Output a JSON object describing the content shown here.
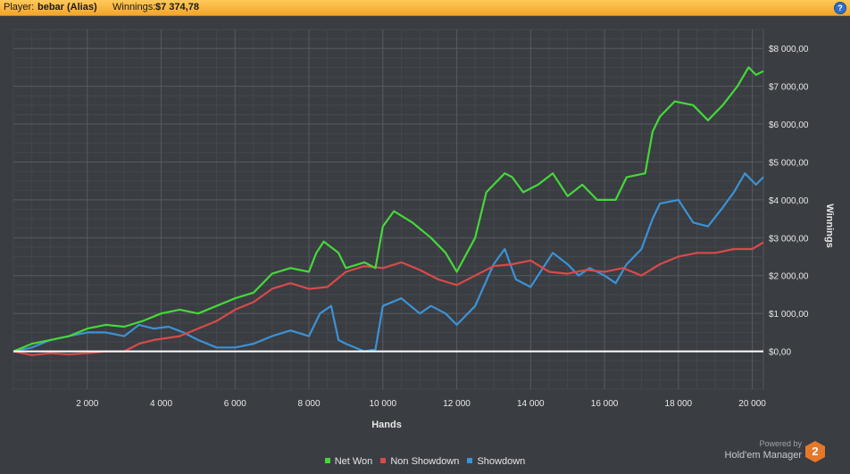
{
  "header": {
    "player_label": "Player:",
    "player_name": "bebar (Alias)",
    "winnings_label": "Winnings:",
    "winnings_value": "$7 374,78",
    "help_glyph": "?"
  },
  "branding": {
    "powered_by": "Powered by",
    "name": "Hold'em Manager",
    "logo_text": "2"
  },
  "chart_data": {
    "type": "line",
    "title": "",
    "xlabel": "Hands",
    "ylabel": "Winnings",
    "xlim": [
      0,
      20300
    ],
    "ylim": [
      -1000,
      8500
    ],
    "x_ticks": [
      2000,
      4000,
      6000,
      8000,
      10000,
      12000,
      14000,
      16000,
      18000,
      20000
    ],
    "x_tick_labels": [
      "2 000",
      "4 000",
      "6 000",
      "8 000",
      "10 000",
      "12 000",
      "14 000",
      "16 000",
      "18 000",
      "20 000"
    ],
    "y_ticks": [
      0,
      1000,
      2000,
      3000,
      4000,
      5000,
      6000,
      7000,
      8000
    ],
    "y_tick_labels": [
      "$0,00",
      "$1 000,00",
      "$2 000,00",
      "$3 000,00",
      "$4 000,00",
      "$5 000,00",
      "$6 000,00",
      "$7 000,00",
      "$8 000,00"
    ],
    "grid": true,
    "legend_position": "bottom",
    "zero_line_color": "#ffffff",
    "series": [
      {
        "name": "Net Won",
        "color": "#45d83a",
        "points": [
          [
            0,
            0
          ],
          [
            500,
            200
          ],
          [
            1000,
            300
          ],
          [
            1500,
            400
          ],
          [
            2000,
            600
          ],
          [
            2500,
            700
          ],
          [
            3000,
            650
          ],
          [
            3500,
            800
          ],
          [
            4000,
            1000
          ],
          [
            4500,
            1100
          ],
          [
            5000,
            1000
          ],
          [
            5500,
            1200
          ],
          [
            6000,
            1400
          ],
          [
            6500,
            1550
          ],
          [
            7000,
            2050
          ],
          [
            7500,
            2200
          ],
          [
            8000,
            2100
          ],
          [
            8200,
            2600
          ],
          [
            8400,
            2900
          ],
          [
            8800,
            2600
          ],
          [
            9000,
            2200
          ],
          [
            9500,
            2350
          ],
          [
            9800,
            2200
          ],
          [
            10000,
            3300
          ],
          [
            10300,
            3700
          ],
          [
            10800,
            3400
          ],
          [
            11300,
            3000
          ],
          [
            11700,
            2600
          ],
          [
            12000,
            2100
          ],
          [
            12500,
            3000
          ],
          [
            12800,
            4200
          ],
          [
            13000,
            4400
          ],
          [
            13300,
            4700
          ],
          [
            13500,
            4600
          ],
          [
            13800,
            4200
          ],
          [
            14200,
            4400
          ],
          [
            14600,
            4700
          ],
          [
            15000,
            4100
          ],
          [
            15400,
            4400
          ],
          [
            15800,
            4000
          ],
          [
            16300,
            4000
          ],
          [
            16600,
            4600
          ],
          [
            17100,
            4700
          ],
          [
            17300,
            5800
          ],
          [
            17500,
            6200
          ],
          [
            17900,
            6600
          ],
          [
            18400,
            6500
          ],
          [
            18800,
            6100
          ],
          [
            19200,
            6500
          ],
          [
            19600,
            7000
          ],
          [
            19900,
            7500
          ],
          [
            20100,
            7300
          ],
          [
            20300,
            7400
          ]
        ]
      },
      {
        "name": "Non Showdown",
        "color": "#d84a4a",
        "points": [
          [
            0,
            0
          ],
          [
            500,
            -100
          ],
          [
            1000,
            -50
          ],
          [
            1500,
            -80
          ],
          [
            2000,
            -50
          ],
          [
            2500,
            0
          ],
          [
            3000,
            0
          ],
          [
            3400,
            200
          ],
          [
            3800,
            300
          ],
          [
            4500,
            400
          ],
          [
            5000,
            600
          ],
          [
            5500,
            800
          ],
          [
            6000,
            1100
          ],
          [
            6500,
            1300
          ],
          [
            7000,
            1650
          ],
          [
            7500,
            1800
          ],
          [
            8000,
            1650
          ],
          [
            8500,
            1700
          ],
          [
            9000,
            2100
          ],
          [
            9500,
            2250
          ],
          [
            10000,
            2200
          ],
          [
            10500,
            2350
          ],
          [
            11000,
            2150
          ],
          [
            11500,
            1900
          ],
          [
            12000,
            1750
          ],
          [
            12500,
            2000
          ],
          [
            13000,
            2250
          ],
          [
            13500,
            2300
          ],
          [
            14000,
            2400
          ],
          [
            14500,
            2100
          ],
          [
            15000,
            2050
          ],
          [
            15500,
            2150
          ],
          [
            16000,
            2100
          ],
          [
            16500,
            2200
          ],
          [
            17000,
            2000
          ],
          [
            17500,
            2300
          ],
          [
            18000,
            2500
          ],
          [
            18500,
            2600
          ],
          [
            19000,
            2600
          ],
          [
            19500,
            2700
          ],
          [
            20000,
            2700
          ],
          [
            20300,
            2880
          ]
        ]
      },
      {
        "name": "Showdown",
        "color": "#3c92d6",
        "points": [
          [
            0,
            0
          ],
          [
            500,
            100
          ],
          [
            1000,
            300
          ],
          [
            1500,
            400
          ],
          [
            2000,
            500
          ],
          [
            2500,
            500
          ],
          [
            3000,
            400
          ],
          [
            3400,
            700
          ],
          [
            3800,
            600
          ],
          [
            4200,
            650
          ],
          [
            4600,
            500
          ],
          [
            5000,
            300
          ],
          [
            5500,
            100
          ],
          [
            6000,
            100
          ],
          [
            6500,
            200
          ],
          [
            7000,
            400
          ],
          [
            7500,
            550
          ],
          [
            8000,
            400
          ],
          [
            8300,
            1000
          ],
          [
            8600,
            1200
          ],
          [
            8800,
            300
          ],
          [
            9000,
            200
          ],
          [
            9500,
            0
          ],
          [
            9800,
            50
          ],
          [
            10000,
            1200
          ],
          [
            10500,
            1400
          ],
          [
            11000,
            1000
          ],
          [
            11300,
            1200
          ],
          [
            11700,
            1000
          ],
          [
            12000,
            700
          ],
          [
            12500,
            1200
          ],
          [
            13000,
            2300
          ],
          [
            13300,
            2700
          ],
          [
            13600,
            1900
          ],
          [
            14000,
            1700
          ],
          [
            14200,
            2000
          ],
          [
            14600,
            2600
          ],
          [
            15000,
            2300
          ],
          [
            15300,
            2000
          ],
          [
            15600,
            2200
          ],
          [
            16000,
            2000
          ],
          [
            16300,
            1800
          ],
          [
            16600,
            2300
          ],
          [
            17000,
            2700
          ],
          [
            17300,
            3500
          ],
          [
            17500,
            3900
          ],
          [
            18000,
            4000
          ],
          [
            18400,
            3400
          ],
          [
            18800,
            3300
          ],
          [
            19200,
            3800
          ],
          [
            19500,
            4200
          ],
          [
            19800,
            4700
          ],
          [
            20100,
            4400
          ],
          [
            20300,
            4600
          ]
        ]
      }
    ]
  }
}
